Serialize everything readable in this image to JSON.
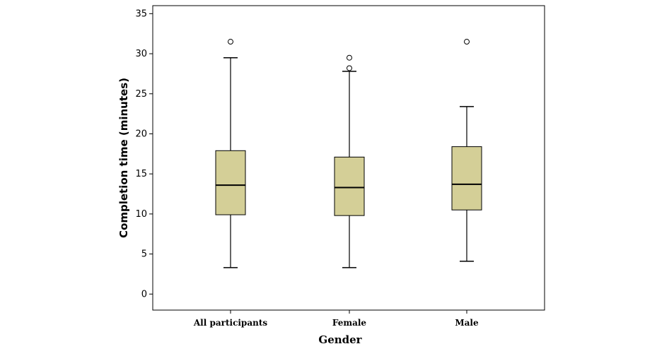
{
  "chart_data": {
    "type": "boxplot",
    "title": "",
    "xlabel": "Gender",
    "ylabel": "Completion time (minutes)",
    "ylim": [
      -2,
      36
    ],
    "yticks": [
      0,
      5,
      10,
      15,
      20,
      25,
      30,
      35
    ],
    "ytick_labels": [
      "0",
      "5",
      "10",
      "15",
      "20",
      "25",
      "30",
      "35"
    ],
    "box_color": "#d4cf97",
    "categories": [
      "All participants",
      "Female",
      "Male"
    ],
    "boxes": [
      {
        "name": "All participants",
        "whisker_low": 3.3,
        "q1": 9.9,
        "median": 13.6,
        "q3": 17.9,
        "whisker_high": 29.5,
        "outliers": [
          31.5
        ]
      },
      {
        "name": "Female",
        "whisker_low": 3.3,
        "q1": 9.8,
        "median": 13.3,
        "q3": 17.1,
        "whisker_high": 27.8,
        "outliers": [
          28.2,
          29.5
        ]
      },
      {
        "name": "Male",
        "whisker_low": 4.1,
        "q1": 10.5,
        "median": 13.7,
        "q3": 18.4,
        "whisker_high": 23.4,
        "outliers": [
          31.5
        ]
      }
    ]
  }
}
